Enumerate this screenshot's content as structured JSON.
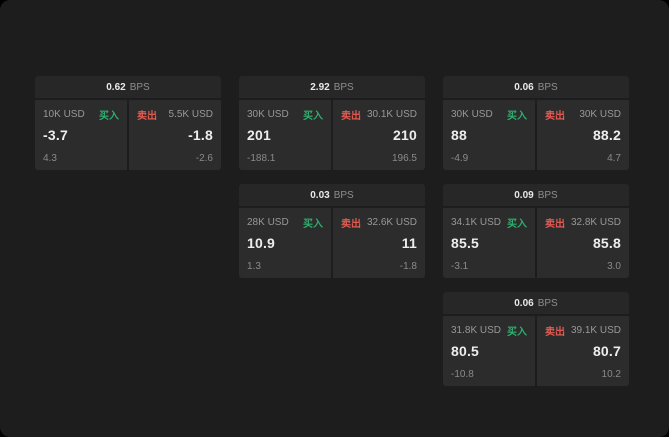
{
  "labels": {
    "buy": "买入",
    "sell": "卖出",
    "bps": "BPS"
  },
  "colors": {
    "buy": "#2fae6e",
    "sell": "#e05a52",
    "page_bg": "#1d1d1d",
    "panel_bg": "#2c2c2c",
    "header_bg": "#272727"
  },
  "cards": [
    {
      "spread": "0.62",
      "buy_size": "10K USD",
      "buy_price": "-3.7",
      "buy_sub": "4.3",
      "sell_size": "5.5K USD",
      "sell_price": "-1.8",
      "sell_sub": "-2.6"
    },
    {
      "spread": "2.92",
      "buy_size": "30K USD",
      "buy_price": "201",
      "buy_sub": "-188.1",
      "sell_size": "30.1K USD",
      "sell_price": "210",
      "sell_sub": "196.5"
    },
    {
      "spread": "0.06",
      "buy_size": "30K USD",
      "buy_price": "88",
      "buy_sub": "-4.9",
      "sell_size": "30K USD",
      "sell_price": "88.2",
      "sell_sub": "4.7"
    },
    {
      "spread": "0.03",
      "buy_size": "28K USD",
      "buy_price": "10.9",
      "buy_sub": "1.3",
      "sell_size": "32.6K USD",
      "sell_price": "11",
      "sell_sub": "-1.8"
    },
    {
      "spread": "0.09",
      "buy_size": "34.1K USD",
      "buy_price": "85.5",
      "buy_sub": "-3.1",
      "sell_size": "32.8K USD",
      "sell_price": "85.8",
      "sell_sub": "3.0"
    },
    {
      "spread": "0.06",
      "buy_size": "31.8K USD",
      "buy_price": "80.5",
      "buy_sub": "-10.8",
      "sell_size": "39.1K USD",
      "sell_price": "80.7",
      "sell_sub": "10.2"
    }
  ]
}
